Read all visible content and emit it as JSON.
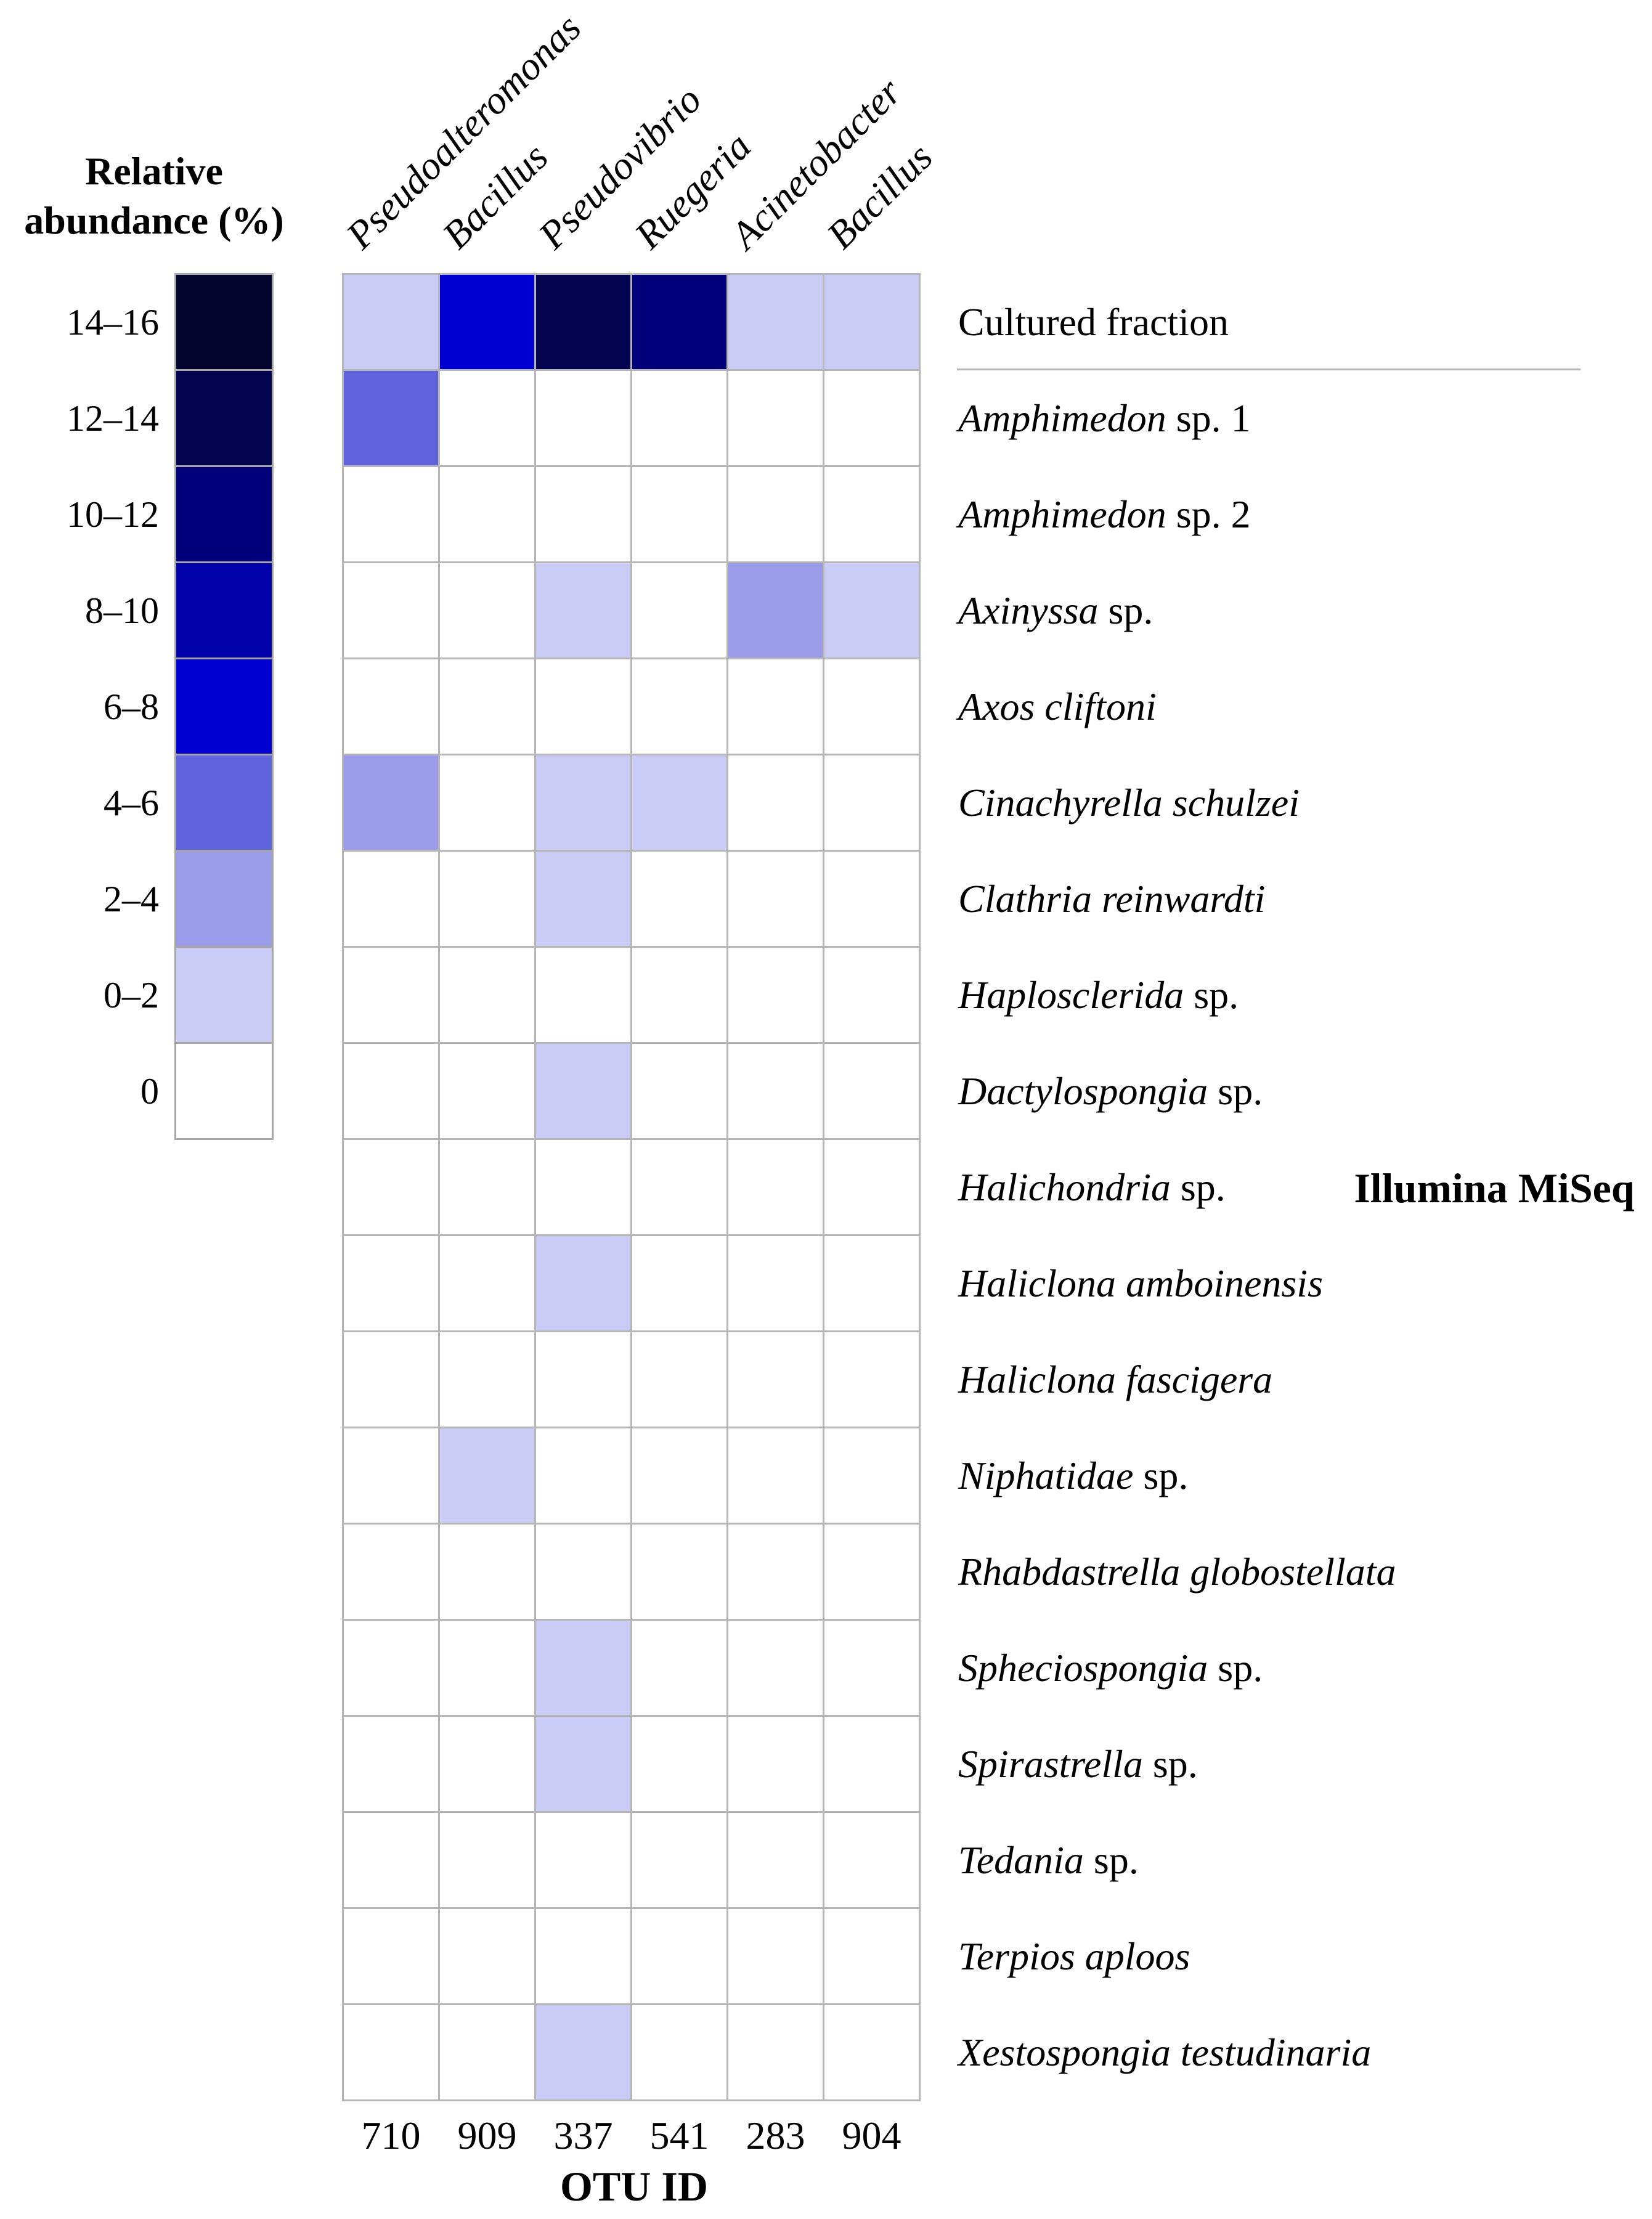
{
  "legend": {
    "title": "Relative abundance (%)",
    "bins": [
      {
        "label": "14–16",
        "color": "#050530"
      },
      {
        "label": "12–14",
        "color": "#03034f"
      },
      {
        "label": "10–12",
        "color": "#01017c"
      },
      {
        "label": "8–10",
        "color": "#0202ac"
      },
      {
        "label": "6–8",
        "color": "#0000d2"
      },
      {
        "label": "4–6",
        "color": "#5f63dd"
      },
      {
        "label": "2–4",
        "color": "#9a9ce9"
      },
      {
        "label": "0–2",
        "color": "#cbccf5"
      },
      {
        "label": "0",
        "color": "#ffffff"
      }
    ]
  },
  "columns": [
    {
      "genus": "Pseudoalteromonas",
      "otu_id": "710"
    },
    {
      "genus": "Bacillus",
      "otu_id": "909"
    },
    {
      "genus": "Pseudovibrio",
      "otu_id": "337"
    },
    {
      "genus": "Ruegeria",
      "otu_id": "541"
    },
    {
      "genus": "Acinetobacter",
      "otu_id": "283"
    },
    {
      "genus": "Bacillus",
      "otu_id": "904"
    }
  ],
  "x_axis": {
    "title": "OTU ID"
  },
  "right_label": "Illumina MiSeq",
  "rows": [
    {
      "italic_part": "",
      "roman_part": "Cultured fraction",
      "values": [
        "0–2",
        "6–8",
        "12–14",
        "10–12",
        "0–2",
        "0–2"
      ]
    },
    {
      "italic_part": "Amphimedon",
      "roman_part": " sp. 1",
      "values": [
        "4–6",
        "0",
        "0",
        "0",
        "0",
        "0"
      ]
    },
    {
      "italic_part": "Amphimedon",
      "roman_part": " sp. 2",
      "values": [
        "0",
        "0",
        "0",
        "0",
        "0",
        "0"
      ]
    },
    {
      "italic_part": "Axinyssa",
      "roman_part": " sp.",
      "values": [
        "0",
        "0",
        "0–2",
        "0",
        "2–4",
        "0–2"
      ]
    },
    {
      "italic_part": "Axos cliftoni",
      "roman_part": "",
      "values": [
        "0",
        "0",
        "0",
        "0",
        "0",
        "0"
      ]
    },
    {
      "italic_part": "Cinachyrella schulzei",
      "roman_part": "",
      "values": [
        "2–4",
        "0",
        "0–2",
        "0–2",
        "0",
        "0"
      ]
    },
    {
      "italic_part": "Clathria reinwardti",
      "roman_part": "",
      "values": [
        "0",
        "0",
        "0–2",
        "0",
        "0",
        "0"
      ]
    },
    {
      "italic_part": "Haplosclerida",
      "roman_part": " sp.",
      "values": [
        "0",
        "0",
        "0",
        "0",
        "0",
        "0"
      ]
    },
    {
      "italic_part": "Dactylospongia",
      "roman_part": " sp.",
      "values": [
        "0",
        "0",
        "0–2",
        "0",
        "0",
        "0"
      ]
    },
    {
      "italic_part": "Halichondria",
      "roman_part": " sp.",
      "values": [
        "0",
        "0",
        "0",
        "0",
        "0",
        "0"
      ]
    },
    {
      "italic_part": "Haliclona amboinensis",
      "roman_part": "",
      "values": [
        "0",
        "0",
        "0–2",
        "0",
        "0",
        "0"
      ]
    },
    {
      "italic_part": "Haliclona fascigera",
      "roman_part": "",
      "values": [
        "0",
        "0",
        "0",
        "0",
        "0",
        "0"
      ]
    },
    {
      "italic_part": "Niphatidae",
      "roman_part": " sp.",
      "values": [
        "0",
        "0–2",
        "0",
        "0",
        "0",
        "0"
      ]
    },
    {
      "italic_part": "Rhabdastrella globostellata",
      "roman_part": "",
      "values": [
        "0",
        "0",
        "0",
        "0",
        "0",
        "0"
      ]
    },
    {
      "italic_part": "Spheciospongia",
      "roman_part": " sp.",
      "values": [
        "0",
        "0",
        "0–2",
        "0",
        "0",
        "0"
      ]
    },
    {
      "italic_part": "Spirastrella",
      "roman_part": " sp.",
      "values": [
        "0",
        "0",
        "0–2",
        "0",
        "0",
        "0"
      ]
    },
    {
      "italic_part": "Tedania",
      "roman_part": " sp.",
      "values": [
        "0",
        "0",
        "0",
        "0",
        "0",
        "0"
      ]
    },
    {
      "italic_part": "Terpios aploos",
      "roman_part": "",
      "values": [
        "0",
        "0",
        "0",
        "0",
        "0",
        "0"
      ]
    },
    {
      "italic_part": "Xestospongia testudinaria",
      "roman_part": "",
      "values": [
        "0",
        "0",
        "0–2",
        "0",
        "0",
        "0"
      ]
    }
  ],
  "chart_data": {
    "type": "heatmap",
    "legend_title": "Relative abundance (%)",
    "xlabel": "OTU ID",
    "x_categories": [
      "Pseudoalteromonas (710)",
      "Bacillus (909)",
      "Pseudovibrio (337)",
      "Ruegeria (541)",
      "Acinetobacter (283)",
      "Bacillus (904)"
    ],
    "y_categories": [
      "Cultured fraction",
      "Amphimedon sp. 1",
      "Amphimedon sp. 2",
      "Axinyssa sp.",
      "Axos cliftoni",
      "Cinachyrella schulzei",
      "Clathria reinwardti",
      "Haplosclerida sp.",
      "Dactylospongia sp.",
      "Halichondria sp.",
      "Haliclona amboinensis",
      "Haliclona fascigera",
      "Niphatidae sp.",
      "Rhabdastrella globostellata",
      "Spheciospongia sp.",
      "Spirastrella sp.",
      "Tedania sp.",
      "Terpios aploos",
      "Xestospongia testudinaria"
    ],
    "values_percent_bin": [
      [
        "0–2",
        "6–8",
        "12–14",
        "10–12",
        "0–2",
        "0–2"
      ],
      [
        "4–6",
        "0",
        "0",
        "0",
        "0",
        "0"
      ],
      [
        "0",
        "0",
        "0",
        "0",
        "0",
        "0"
      ],
      [
        "0",
        "0",
        "0–2",
        "0",
        "2–4",
        "0–2"
      ],
      [
        "0",
        "0",
        "0",
        "0",
        "0",
        "0"
      ],
      [
        "2–4",
        "0",
        "0–2",
        "0–2",
        "0",
        "0"
      ],
      [
        "0",
        "0",
        "0–2",
        "0",
        "0",
        "0"
      ],
      [
        "0",
        "0",
        "0",
        "0",
        "0",
        "0"
      ],
      [
        "0",
        "0",
        "0–2",
        "0",
        "0",
        "0"
      ],
      [
        "0",
        "0",
        "0",
        "0",
        "0",
        "0"
      ],
      [
        "0",
        "0",
        "0–2",
        "0",
        "0",
        "0"
      ],
      [
        "0",
        "0",
        "0",
        "0",
        "0",
        "0"
      ],
      [
        "0",
        "0–2",
        "0",
        "0",
        "0",
        "0"
      ],
      [
        "0",
        "0",
        "0",
        "0",
        "0",
        "0"
      ],
      [
        "0",
        "0",
        "0–2",
        "0",
        "0",
        "0"
      ],
      [
        "0",
        "0",
        "0–2",
        "0",
        "0",
        "0"
      ],
      [
        "0",
        "0",
        "0",
        "0",
        "0",
        "0"
      ],
      [
        "0",
        "0",
        "0",
        "0",
        "0",
        "0"
      ],
      [
        "0",
        "0",
        "0–2",
        "0",
        "0",
        "0"
      ]
    ],
    "color_scale": [
      {
        "bin": "14–16",
        "color": "#050530"
      },
      {
        "bin": "12–14",
        "color": "#03034f"
      },
      {
        "bin": "10–12",
        "color": "#01017c"
      },
      {
        "bin": "8–10",
        "color": "#0202ac"
      },
      {
        "bin": "6–8",
        "color": "#0000d2"
      },
      {
        "bin": "4–6",
        "color": "#5f63dd"
      },
      {
        "bin": "2–4",
        "color": "#9a9ce9"
      },
      {
        "bin": "0–2",
        "color": "#cbccf5"
      },
      {
        "bin": "0",
        "color": "#ffffff"
      }
    ],
    "annotations": [
      "Illumina MiSeq"
    ],
    "grid": true,
    "legend_position": "left"
  }
}
